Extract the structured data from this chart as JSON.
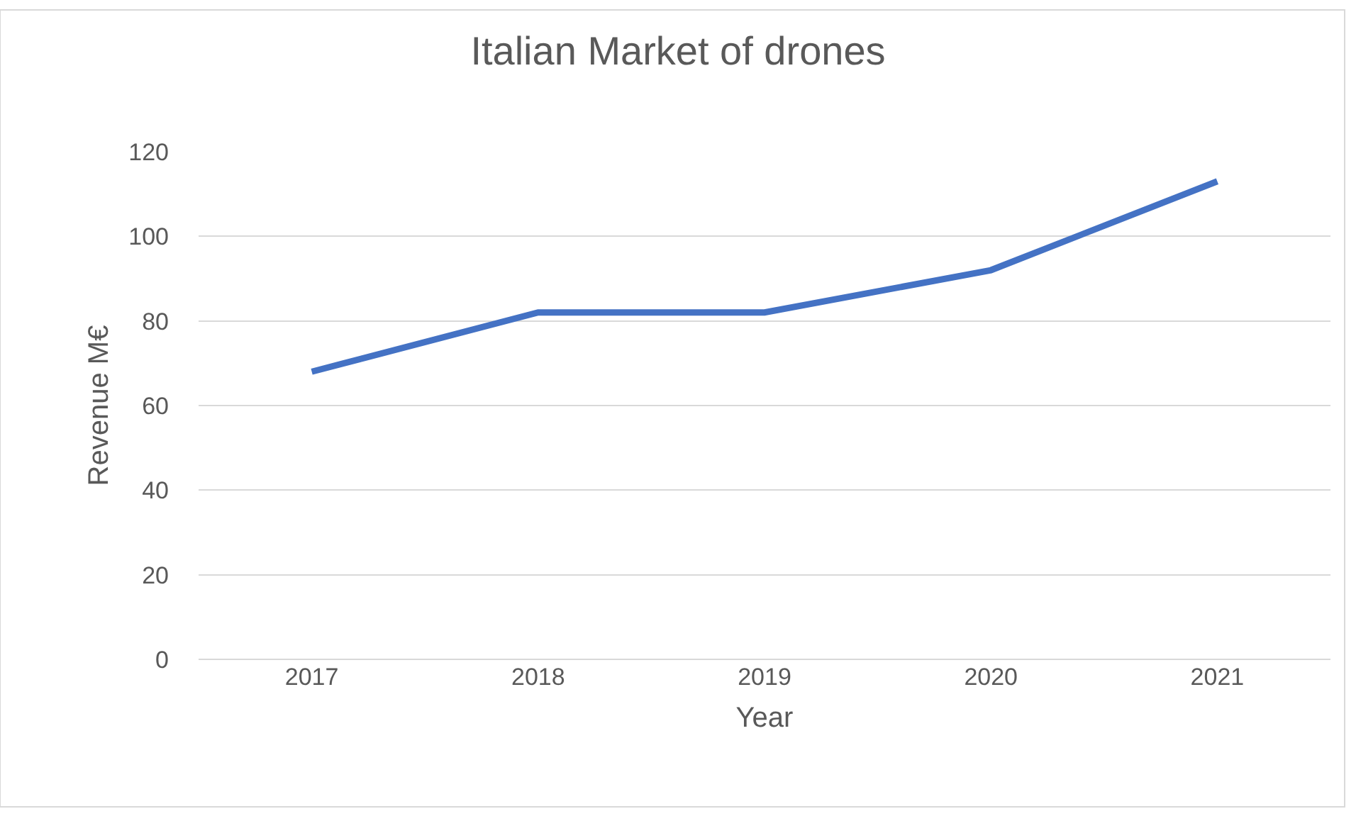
{
  "chart_data": {
    "type": "line",
    "title": "Italian Market of drones",
    "xlabel": "Year",
    "ylabel": "Revenue M€",
    "categories": [
      "2017",
      "2018",
      "2019",
      "2020",
      "2021"
    ],
    "series": [
      {
        "color": "#4472c4",
        "values": [
          68,
          82,
          82,
          92,
          113
        ]
      }
    ],
    "ylim": [
      0,
      120
    ],
    "yticks": [
      0,
      20,
      40,
      60,
      80,
      100,
      120
    ],
    "grid": "y",
    "marker": "none",
    "line_style": "solid"
  }
}
